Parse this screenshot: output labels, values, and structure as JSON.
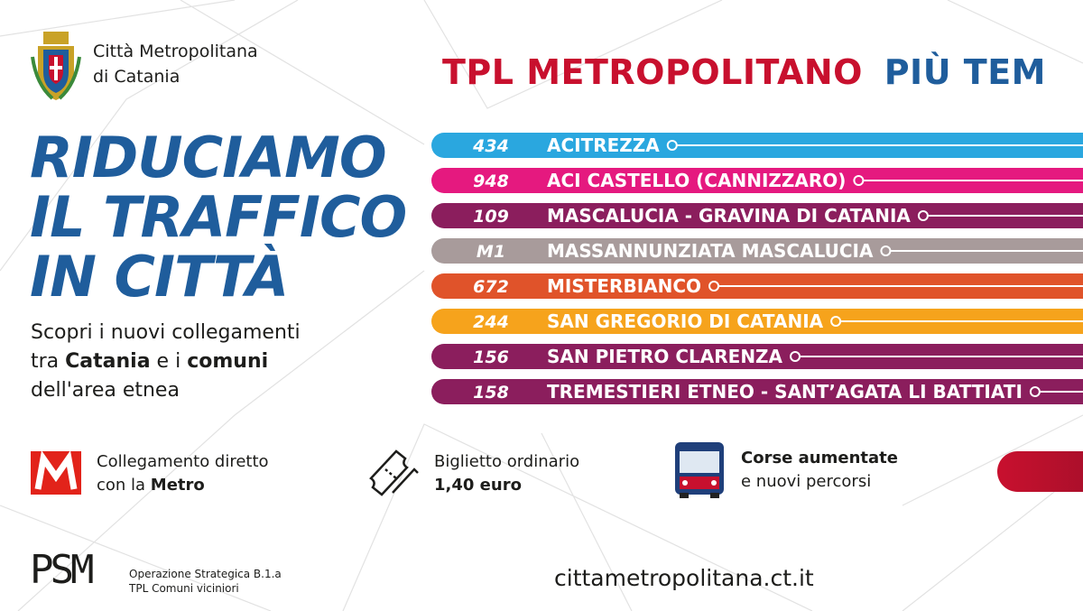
{
  "header": {
    "org_line1": "Città Metropolitana",
    "org_line2": "di Catania"
  },
  "banner": {
    "part1": "TPL METROPOLITANO",
    "part2": "PIÙ TEM"
  },
  "headline": [
    "RIDUCIAMO",
    "IL TRAFFICO",
    "IN CITTÀ"
  ],
  "subtitle": [
    "Scopri i nuovi collegamenti",
    "tra ",
    "Catania",
    " e i ",
    "comuni",
    "dell'area etnea"
  ],
  "routes": [
    {
      "number": "434",
      "name": "ACITREZZA",
      "color": "#2aa7df"
    },
    {
      "number": "948",
      "name": "ACI CASTELLO (CANNIZZARO)",
      "color": "#e5197f"
    },
    {
      "number": "109",
      "name": "MASCALUCIA - GRAVINA DI CATANIA",
      "color": "#8b1e5d"
    },
    {
      "number": "M1",
      "name": "MASSANNUNZIATA MASCALUCIA",
      "color": "#a89b9b"
    },
    {
      "number": "672",
      "name": "MISTERBIANCO",
      "color": "#e0532a"
    },
    {
      "number": "244",
      "name": "SAN GREGORIO DI CATANIA",
      "color": "#f6a31c"
    },
    {
      "number": "156",
      "name": "SAN PIETRO CLARENZA",
      "color": "#8b1e5d"
    },
    {
      "number": "158",
      "name": "TREMESTIERI ETNEO - SANT’AGATA LI BATTIATI",
      "color": "#8b1e5d"
    }
  ],
  "features": [
    {
      "line1": "Collegamento diretto",
      "line2": "con la ",
      "bold": "Metro"
    },
    {
      "line1": "Biglietto ordinario",
      "line2": "1,40 euro"
    },
    {
      "line1": "Corse aumentate",
      "line2": "e nuovi percorsi"
    }
  ],
  "footer": {
    "logo": "PSM",
    "op_line1": "Operazione Strategica B.1.a",
    "op_line2": "TPL Comuni viciniori",
    "website": "cittametropolitana.ct.it"
  }
}
